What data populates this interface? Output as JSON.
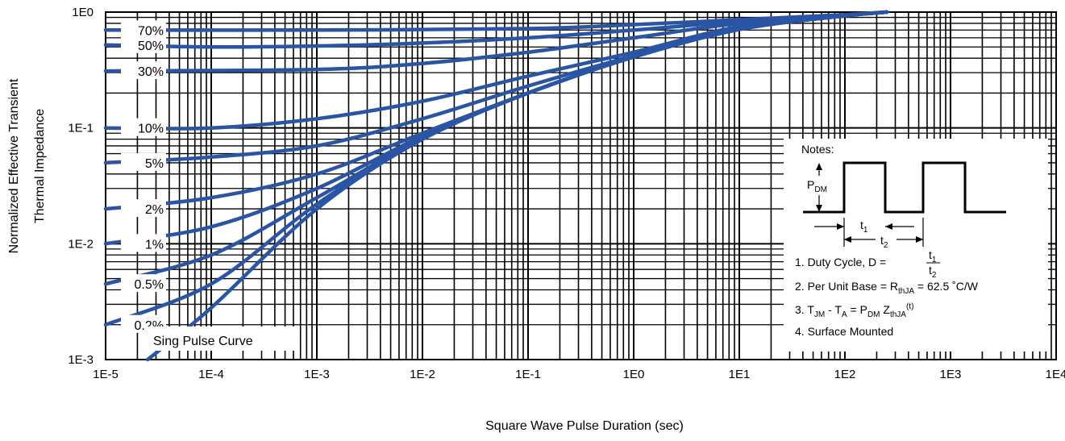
{
  "chart_data": {
    "type": "line",
    "xlabel": "Square Wave Pulse Duration (sec)",
    "ylabel": [
      "Normalized Effective Transient",
      "Thermal Impedance"
    ],
    "x_scale": "log",
    "y_scale": "log",
    "xlim": [
      1e-05,
      10000
    ],
    "ylim": [
      0.001,
      1
    ],
    "grid": true,
    "x_tick_labels": [
      "1E-5",
      "1E-4",
      "1E-3",
      "1E-2",
      "1E-1",
      "1E0",
      "1E1",
      "1E2",
      "1E3",
      "1E4"
    ],
    "y_tick_labels": [
      "1E0",
      "1E-1",
      "1E-2",
      "1E-3"
    ],
    "series": [
      {
        "name": "70%",
        "x": [
          1e-05,
          0.001,
          0.1,
          1,
          10,
          100,
          250
        ],
        "y": [
          0.7,
          0.7,
          0.72,
          0.78,
          0.86,
          0.95,
          1.0
        ]
      },
      {
        "name": "50%",
        "x": [
          1e-05,
          0.0001,
          0.001,
          0.01,
          0.1,
          1,
          10,
          100,
          250
        ],
        "y": [
          0.52,
          0.5,
          0.51,
          0.54,
          0.6,
          0.7,
          0.83,
          0.94,
          1.0
        ]
      },
      {
        "name": "30%",
        "x": [
          1e-05,
          0.001,
          0.01,
          0.1,
          1,
          10,
          100,
          250
        ],
        "y": [
          0.31,
          0.32,
          0.36,
          0.45,
          0.6,
          0.8,
          0.94,
          1.0
        ]
      },
      {
        "name": "10%",
        "x": [
          1e-05,
          0.0001,
          0.001,
          0.01,
          0.1,
          1,
          10,
          100,
          250
        ],
        "y": [
          0.1,
          0.1,
          0.12,
          0.17,
          0.28,
          0.45,
          0.75,
          0.93,
          1.0
        ]
      },
      {
        "name": "5%",
        "x": [
          1e-05,
          0.0001,
          0.001,
          0.01,
          0.1,
          1,
          10,
          100,
          250
        ],
        "y": [
          0.05,
          0.056,
          0.07,
          0.12,
          0.23,
          0.42,
          0.72,
          0.93,
          1.0
        ]
      },
      {
        "name": "2%",
        "x": [
          1e-05,
          0.0001,
          0.001,
          0.01,
          0.1,
          1,
          10,
          100,
          250
        ],
        "y": [
          0.02,
          0.025,
          0.04,
          0.09,
          0.2,
          0.41,
          0.71,
          0.93,
          1.0
        ]
      },
      {
        "name": "1%",
        "x": [
          1e-05,
          0.0001,
          0.001,
          0.01,
          0.1,
          1,
          10,
          100,
          250
        ],
        "y": [
          0.01,
          0.014,
          0.03,
          0.085,
          0.2,
          0.41,
          0.71,
          0.93,
          1.0
        ]
      },
      {
        "name": "0.5%",
        "x": [
          1e-05,
          0.0001,
          0.001,
          0.01,
          0.1,
          1,
          10,
          100,
          250
        ],
        "y": [
          0.0045,
          0.008,
          0.025,
          0.082,
          0.2,
          0.41,
          0.71,
          0.93,
          1.0
        ]
      },
      {
        "name": "0.2%",
        "x": [
          1e-05,
          0.0001,
          0.001,
          0.01,
          0.1,
          1,
          10,
          100,
          250
        ],
        "y": [
          0.002,
          0.0045,
          0.022,
          0.08,
          0.2,
          0.41,
          0.71,
          0.93,
          1.0
        ]
      },
      {
        "name": "Sing Pulse Curve",
        "x": [
          2.5e-05,
          0.0001,
          0.001,
          0.01,
          0.1,
          1,
          10,
          100,
          250
        ],
        "y": [
          0.001,
          0.0028,
          0.02,
          0.08,
          0.2,
          0.41,
          0.71,
          0.93,
          1.0
        ]
      }
    ],
    "notes": {
      "title": "Notes:",
      "pdm_label": "P",
      "pdm_sub": "DM",
      "t1_label": "t",
      "t1_sub": "1",
      "t2_label": "t",
      "t2_sub": "2",
      "note1": "1. Duty Cycle, D = ",
      "note2_a": "2. Per Unit Base = R",
      "note2_sub": "thJA",
      "note2_b": " = 62.5 ˚C/W",
      "note3_a": "3. T",
      "note3_sub1": "JM",
      "note3_b": " - T",
      "note3_sub2": "A",
      "note3_c": " = P",
      "note3_sub3": "DM",
      "note3_d": " Z",
      "note3_sub4": "thJA",
      "note3_sup": "(t)",
      "note4": "4. Surface Mounted"
    },
    "line_color": "#2a55a5"
  }
}
